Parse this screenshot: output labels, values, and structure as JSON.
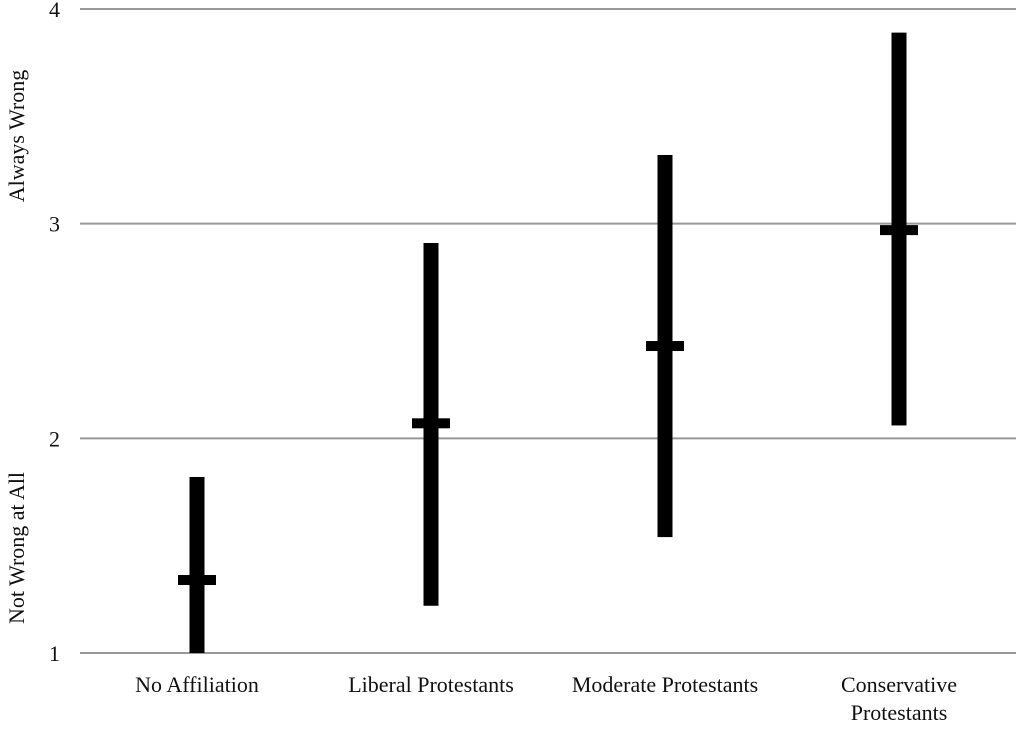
{
  "chart_data": {
    "type": "range",
    "categories": [
      {
        "lines": [
          "No Affiliation"
        ]
      },
      {
        "lines": [
          "Liberal Protestants"
        ]
      },
      {
        "lines": [
          "Moderate Protestants"
        ]
      },
      {
        "lines": [
          "Conservative",
          "Protestants"
        ]
      }
    ],
    "series": [
      {
        "low": 1.0,
        "high": 1.82,
        "mean": 1.34
      },
      {
        "low": 1.22,
        "high": 2.91,
        "mean": 2.07
      },
      {
        "low": 1.54,
        "high": 3.32,
        "mean": 2.43
      },
      {
        "low": 2.06,
        "high": 3.89,
        "mean": 2.97
      }
    ],
    "ylim": [
      1,
      4
    ],
    "yticks": [
      {
        "value": 1,
        "label": "1"
      },
      {
        "value": 2,
        "label": "2"
      },
      {
        "value": 3,
        "label": "3"
      },
      {
        "value": 4,
        "label": "4"
      }
    ],
    "ylabel_low": "Not Wrong at All",
    "ylabel_high": "Always Wrong",
    "grid": true,
    "colors": {
      "bar": "#000000",
      "grid": "#999999"
    }
  }
}
